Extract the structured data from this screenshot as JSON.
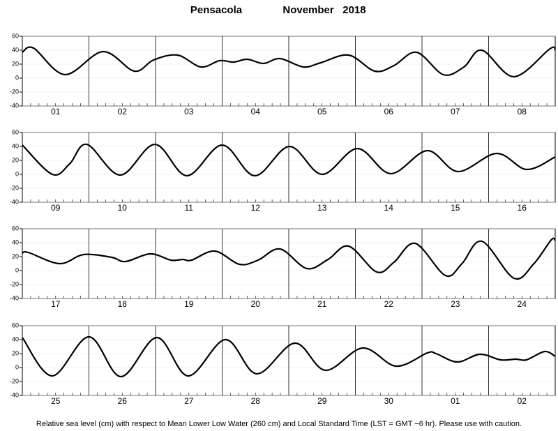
{
  "title_place": "Pensacola",
  "title_period": "November   2018",
  "note": "Relative sea level (cm) with respect to Mean Lower Low Water (260 cm) and Local Standard Time (LST = GMT −6 hr). Please use with caution.",
  "chart_data": [
    {
      "type": "line",
      "day_labels": [
        "01",
        "02",
        "03",
        "04",
        "05",
        "06",
        "07",
        "08"
      ],
      "xlim": [
        0,
        8
      ],
      "ylim": [
        -40,
        60
      ],
      "yticks": [
        -40,
        -20,
        0,
        20,
        40,
        60
      ],
      "x": [
        0,
        0.17,
        0.64,
        1.21,
        1.68,
        1.97,
        2.33,
        2.68,
        2.96,
        3.17,
        3.38,
        3.62,
        3.87,
        4.22,
        4.48,
        4.9,
        5.29,
        5.58,
        5.92,
        6.32,
        6.63,
        6.9,
        7.38,
        7.92,
        8
      ],
      "series": [
        {
          "color": "#000000",
          "values": [
            37,
            43,
            5,
            38,
            10,
            26,
            33,
            16,
            25,
            23,
            27,
            21,
            28,
            16,
            22,
            33,
            10,
            18,
            37,
            5,
            16,
            40,
            2,
            42,
            40
          ]
        }
      ]
    },
    {
      "type": "line",
      "day_labels": [
        "09",
        "10",
        "11",
        "12",
        "13",
        "14",
        "15",
        "16"
      ],
      "xlim": [
        0,
        8
      ],
      "ylim": [
        -40,
        60
      ],
      "yticks": [
        -40,
        -20,
        0,
        20,
        40,
        60
      ],
      "x": [
        0,
        0.45,
        0.71,
        0.97,
        1.47,
        1.99,
        2.47,
        3.0,
        3.49,
        4.01,
        4.5,
        5.03,
        5.53,
        6.08,
        6.54,
        7.12,
        7.57,
        8
      ],
      "series": [
        {
          "color": "#000000",
          "values": [
            42,
            0,
            15,
            43,
            -1,
            43,
            -2,
            42,
            -2,
            40,
            0,
            37,
            1,
            34,
            4,
            30,
            7,
            25
          ]
        }
      ]
    },
    {
      "type": "line",
      "day_labels": [
        "17",
        "18",
        "19",
        "20",
        "21",
        "22",
        "23",
        "24"
      ],
      "xlim": [
        0,
        8
      ],
      "ylim": [
        -40,
        60
      ],
      "yticks": [
        -40,
        -20,
        0,
        20,
        40,
        60
      ],
      "x": [
        0,
        0.09,
        0.56,
        0.92,
        1.34,
        1.55,
        1.92,
        2.23,
        2.41,
        2.54,
        2.89,
        3.26,
        3.54,
        3.87,
        4.27,
        4.59,
        4.9,
        5.32,
        5.58,
        5.9,
        6.35,
        6.6,
        6.9,
        7.38,
        7.68,
        7.94,
        8
      ],
      "series": [
        {
          "color": "#000000",
          "values": [
            25,
            26,
            10,
            23,
            19,
            13,
            24,
            15,
            16,
            15,
            28,
            9,
            15,
            31,
            3,
            16,
            35,
            -2,
            12,
            39,
            -7,
            10,
            42,
            -11,
            10,
            44,
            43
          ]
        }
      ]
    },
    {
      "type": "line",
      "day_labels": [
        "25",
        "26",
        "27",
        "28",
        "29",
        "30",
        "01",
        "02"
      ],
      "xlim": [
        0,
        8
      ],
      "ylim": [
        -40,
        60
      ],
      "yticks": [
        -40,
        -20,
        0,
        20,
        40,
        60
      ],
      "x": [
        0,
        0.45,
        1.0,
        1.48,
        2.02,
        2.49,
        3.05,
        3.52,
        4.09,
        4.55,
        5.11,
        5.61,
        6.08,
        6.21,
        6.53,
        6.87,
        7.18,
        7.41,
        7.57,
        7.84,
        8
      ],
      "series": [
        {
          "color": "#000000",
          "values": [
            43,
            -12,
            44,
            -13,
            43,
            -12,
            40,
            -9,
            35,
            -4,
            28,
            2,
            21,
            20,
            8,
            19,
            11,
            12,
            11,
            23,
            16
          ]
        }
      ]
    }
  ]
}
